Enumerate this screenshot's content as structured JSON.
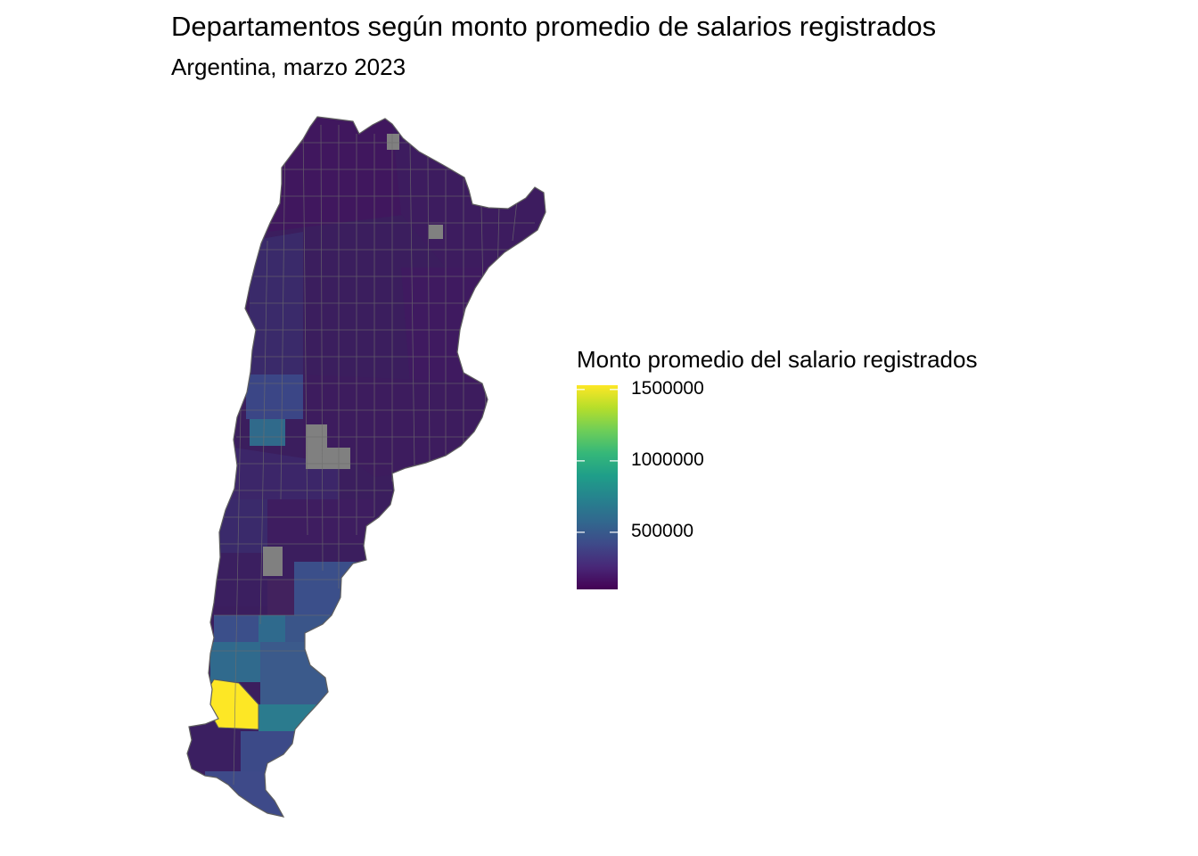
{
  "title": "Departamentos según monto promedio de salarios registrados",
  "subtitle": "Argentina, marzo 2023",
  "legend": {
    "title": "Monto promedio del salario registrados",
    "min": 100000,
    "max": 1530000,
    "breaks": [
      {
        "value": 1500000,
        "label": "1500000"
      },
      {
        "value": 1000000,
        "label": "1000000"
      },
      {
        "value": 500000,
        "label": "500000"
      }
    ],
    "palette": [
      "#440154",
      "#482878",
      "#3e4a89",
      "#31688e",
      "#26828e",
      "#1f9e89",
      "#35b779",
      "#6ece58",
      "#b5de2b",
      "#fde725"
    ]
  },
  "map": {
    "country": "Argentina",
    "colors": {
      "background_region": "#3b1e5e",
      "low": "#44195e",
      "mid": "#3b4f8a",
      "teal": "#2e6e8e",
      "high": "#fde725",
      "na": "#808080",
      "border": "#6e6e6e"
    }
  }
}
